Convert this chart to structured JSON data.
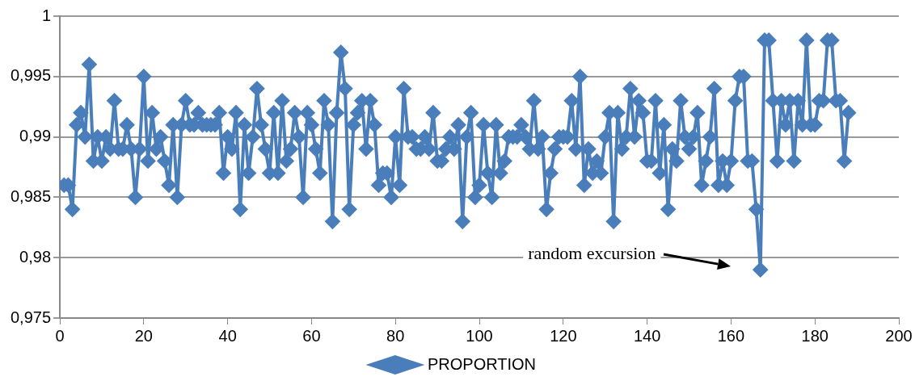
{
  "chart_data": {
    "type": "line",
    "x": [
      1,
      2,
      3,
      4,
      5,
      6,
      7,
      8,
      9,
      10,
      11,
      12,
      13,
      14,
      15,
      16,
      17,
      18,
      19,
      20,
      21,
      22,
      23,
      24,
      25,
      26,
      27,
      28,
      29,
      30,
      31,
      32,
      33,
      34,
      35,
      36,
      37,
      38,
      39,
      40,
      41,
      42,
      43,
      44,
      45,
      46,
      47,
      48,
      49,
      50,
      51,
      52,
      53,
      54,
      55,
      56,
      57,
      58,
      59,
      60,
      61,
      62,
      63,
      64,
      65,
      66,
      67,
      68,
      69,
      70,
      71,
      72,
      73,
      74,
      75,
      76,
      77,
      78,
      79,
      80,
      81,
      82,
      83,
      84,
      85,
      86,
      87,
      88,
      89,
      90,
      91,
      92,
      93,
      94,
      95,
      96,
      97,
      98,
      99,
      100,
      101,
      102,
      103,
      104,
      105,
      106,
      107,
      108,
      109,
      110,
      111,
      112,
      113,
      114,
      115,
      116,
      117,
      118,
      119,
      120,
      121,
      122,
      123,
      124,
      125,
      126,
      127,
      128,
      129,
      130,
      131,
      132,
      133,
      134,
      135,
      136,
      137,
      138,
      139,
      140,
      141,
      142,
      143,
      144,
      145,
      146,
      147,
      148,
      149,
      150,
      151,
      152,
      153,
      154,
      155,
      156,
      157,
      158,
      159,
      160,
      161,
      162,
      163,
      164,
      165,
      166,
      167,
      168,
      169,
      170,
      171,
      172,
      173,
      174,
      175,
      176,
      177,
      178,
      179,
      180,
      181,
      182,
      183,
      184,
      185,
      186,
      187,
      188
    ],
    "series": [
      {
        "name": "PROPORTION",
        "color": "#4a7ebb",
        "values": [
          0.986,
          0.986,
          0.984,
          0.991,
          0.992,
          0.99,
          0.996,
          0.988,
          0.99,
          0.988,
          0.99,
          0.989,
          0.993,
          0.989,
          0.989,
          0.991,
          0.989,
          0.985,
          0.989,
          0.995,
          0.988,
          0.992,
          0.989,
          0.99,
          0.988,
          0.986,
          0.991,
          0.985,
          0.991,
          0.993,
          0.991,
          0.991,
          0.992,
          0.991,
          0.991,
          0.991,
          0.991,
          0.992,
          0.987,
          0.99,
          0.989,
          0.992,
          0.984,
          0.991,
          0.987,
          0.99,
          0.994,
          0.991,
          0.989,
          0.987,
          0.992,
          0.987,
          0.993,
          0.988,
          0.989,
          0.992,
          0.99,
          0.985,
          0.992,
          0.991,
          0.989,
          0.987,
          0.993,
          0.991,
          0.983,
          0.992,
          0.997,
          0.994,
          0.984,
          0.991,
          0.992,
          0.993,
          0.989,
          0.993,
          0.991,
          0.986,
          0.987,
          0.987,
          0.985,
          0.99,
          0.986,
          0.994,
          0.99,
          0.99,
          0.989,
          0.989,
          0.99,
          0.989,
          0.992,
          0.988,
          0.988,
          0.989,
          0.99,
          0.989,
          0.991,
          0.983,
          0.99,
          0.992,
          0.985,
          0.986,
          0.991,
          0.987,
          0.985,
          0.991,
          0.987,
          0.988,
          0.99,
          0.99,
          0.99,
          0.991,
          0.99,
          0.989,
          0.993,
          0.989,
          0.99,
          0.984,
          0.987,
          0.989,
          0.99,
          0.99,
          0.99,
          0.993,
          0.989,
          0.995,
          0.986,
          0.989,
          0.987,
          0.988,
          0.987,
          0.99,
          0.992,
          0.983,
          0.992,
          0.989,
          0.99,
          0.994,
          0.99,
          0.993,
          0.992,
          0.988,
          0.988,
          0.993,
          0.987,
          0.991,
          0.984,
          0.989,
          0.988,
          0.993,
          0.99,
          0.989,
          0.99,
          0.992,
          0.986,
          0.988,
          0.99,
          0.994,
          0.986,
          0.988,
          0.986,
          0.988,
          0.993,
          0.995,
          0.995,
          0.988,
          0.988,
          0.984,
          0.979,
          0.998,
          0.998,
          0.993,
          0.988,
          0.993,
          0.991,
          0.993,
          0.988,
          0.993,
          0.991,
          0.998,
          0.991,
          0.991,
          0.993,
          0.993,
          0.998,
          0.998,
          0.993,
          0.993,
          0.988,
          0.992
        ]
      }
    ],
    "xlim": [
      0,
      200
    ],
    "xticks": [
      0,
      20,
      40,
      60,
      80,
      100,
      120,
      140,
      160,
      180,
      200
    ],
    "ylim": [
      0.975,
      1
    ],
    "yticks": [
      {
        "value": 0.975,
        "label": "0,975"
      },
      {
        "value": 0.98,
        "label": "0,98"
      },
      {
        "value": 0.985,
        "label": "0,985"
      },
      {
        "value": 0.99,
        "label": "0,99"
      },
      {
        "value": 0.995,
        "label": "0,995"
      },
      {
        "value": 1,
        "label": "1"
      }
    ],
    "grid": "y",
    "legend": "bottom",
    "marker": "diamond",
    "line_style": "solid",
    "annotations": [
      "random excursion"
    ]
  }
}
